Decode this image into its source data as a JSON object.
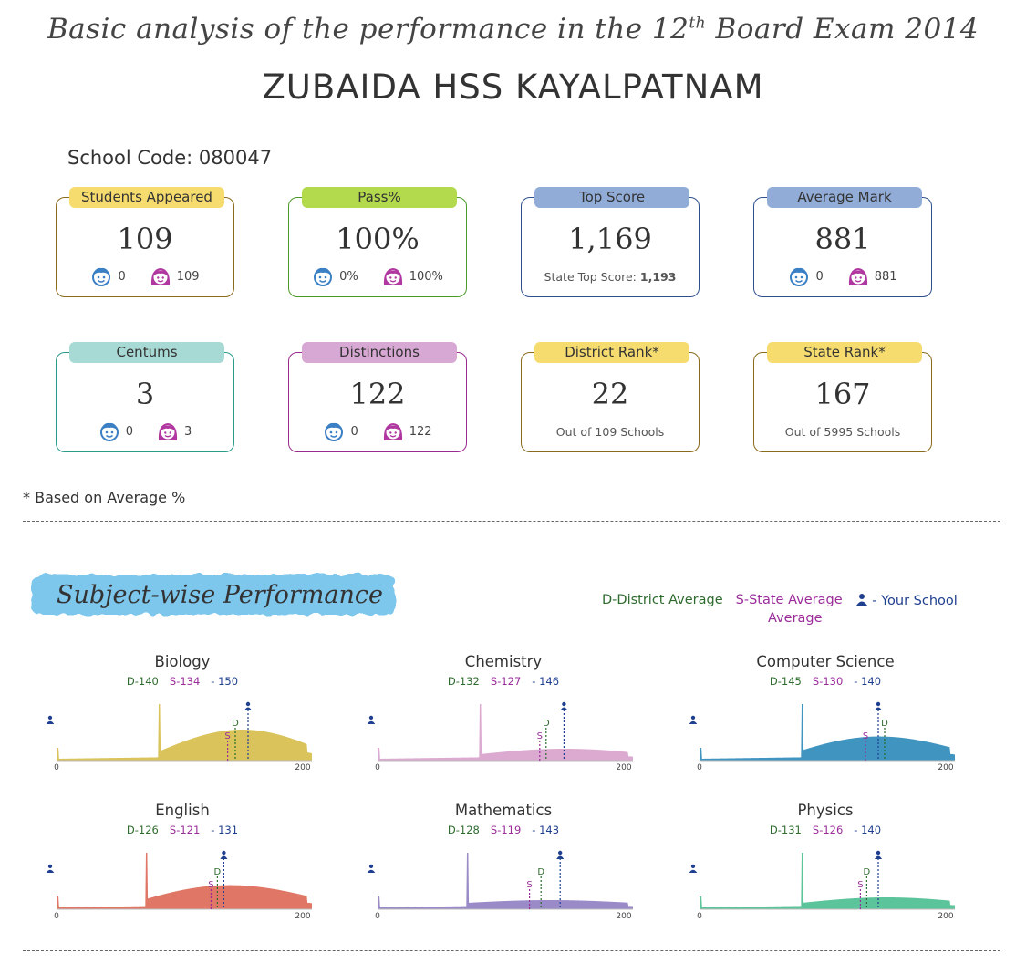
{
  "header": {
    "title_pre": "Basic analysis of the performance in the 12",
    "title_sup": "th",
    "title_post": " Board Exam 2014",
    "school_name": "ZUBAIDA HSS KAYALPATNAM",
    "school_code": "School Code: 080047"
  },
  "cards": [
    {
      "label": "Students Appeared",
      "value": "109",
      "boys": "0",
      "girls": "109",
      "tab_color": "#f6dc6e",
      "border_color": "#8a6a1c"
    },
    {
      "label": "Pass%",
      "value": "100%",
      "boys": "0%",
      "girls": "100%",
      "tab_color": "#b3d94d",
      "border_color": "#4a9a2a"
    },
    {
      "label": "Top Score",
      "value": "1,169",
      "note_label": "State Top Score:",
      "note_value": "1,193",
      "tab_color": "#92acd8",
      "border_color": "#2e4f8e"
    },
    {
      "label": "Average Mark",
      "value": "881",
      "boys": "0",
      "girls": "881",
      "tab_color": "#92acd8",
      "border_color": "#2e4f8e"
    },
    {
      "label": "Centums",
      "value": "3",
      "boys": "0",
      "girls": "3",
      "tab_color": "#a8dad5",
      "border_color": "#2a9a8a"
    },
    {
      "label": "Distinctions",
      "value": "122",
      "boys": "0",
      "girls": "122",
      "tab_color": "#d7a8d3",
      "border_color": "#9a2a8e"
    },
    {
      "label": "District Rank*",
      "value": "22",
      "note_label": "Out of 109 Schools",
      "tab_color": "#f6dc6e",
      "border_color": "#8a6a1c"
    },
    {
      "label": "State Rank*",
      "value": "167",
      "note_label": "Out of 5995 Schools",
      "tab_color": "#f6dc6e",
      "border_color": "#8a6a1c"
    }
  ],
  "footnote": "* Based on Average %",
  "section_title": "Subject-wise Performance",
  "legend": {
    "district": "D-District Average",
    "state_line1": "S-State Average",
    "state_line2": "Average",
    "school": "- Your School"
  },
  "axis": {
    "min": "0",
    "max": "200"
  },
  "subjects": [
    {
      "name": "Biology",
      "d": 140,
      "s": 134,
      "y": 150,
      "d_label": "D-140",
      "s_label": "S-134",
      "y_label": "- 150",
      "color": "#d9c35a",
      "spike": 80,
      "shape": "hump"
    },
    {
      "name": "Chemistry",
      "d": 132,
      "s": 127,
      "y": 146,
      "d_label": "D-132",
      "s_label": "S-127",
      "y_label": "- 146",
      "color": "#dca9d0",
      "spike": 80,
      "shape": "flat"
    },
    {
      "name": "Computer Science",
      "d": 145,
      "s": 130,
      "y": 140,
      "d_label": "D-145",
      "s_label": "S-130",
      "y_label": "- 140",
      "color": "#3f94c0",
      "spike": 80,
      "shape": "broad"
    },
    {
      "name": "English",
      "d": 126,
      "s": 121,
      "y": 131,
      "d_label": "D-126",
      "s_label": "S-121",
      "y_label": "- 131",
      "color": "#e07766",
      "spike": 70,
      "shape": "broad"
    },
    {
      "name": "Mathematics",
      "d": 128,
      "s": 119,
      "y": 143,
      "d_label": "D-128",
      "s_label": "S-119",
      "y_label": "- 143",
      "color": "#9a8ac8",
      "spike": 70,
      "shape": "low"
    },
    {
      "name": "Physics",
      "d": 131,
      "s": 126,
      "y": 140,
      "d_label": "D-131",
      "s_label": "S-126",
      "y_label": "- 140",
      "color": "#5cc49a",
      "spike": 80,
      "shape": "flat"
    }
  ]
}
